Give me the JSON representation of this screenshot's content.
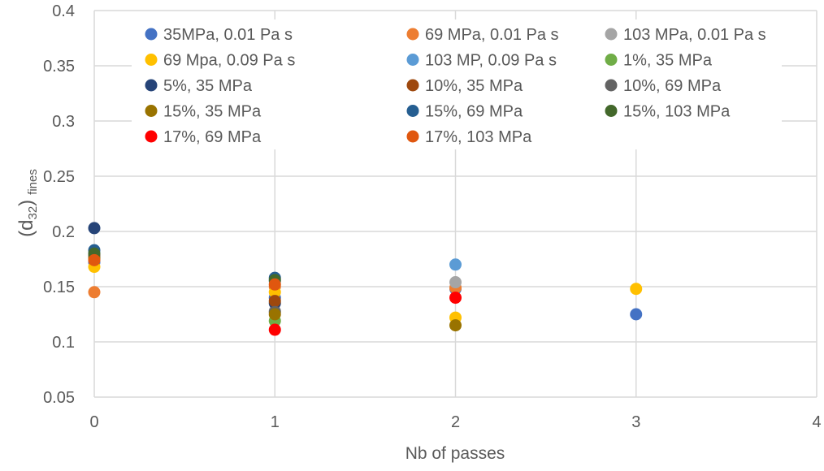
{
  "chart_data": {
    "type": "scatter",
    "xlabel": "Nb of passes",
    "ylabel_main": "(d",
    "ylabel_sub": "32",
    "ylabel_close": ")",
    "ylabel_suffix": "fines",
    "xlim": [
      0,
      4
    ],
    "ylim": [
      0.05,
      0.4
    ],
    "x_ticks": [
      "0",
      "1",
      "2",
      "3",
      "4"
    ],
    "y_ticks": [
      "0.05",
      "0.1",
      "0.15",
      "0.2",
      "0.25",
      "0.3",
      "0.35",
      "0.4"
    ],
    "grid": true,
    "legend_placement": "top",
    "series": [
      {
        "name": "35MPa, 0.01 Pa s",
        "color": "#4472C4",
        "points": [
          [
            0,
            0.172
          ],
          [
            1,
            0.14
          ],
          [
            2,
            0.148
          ],
          [
            3,
            0.125
          ]
        ]
      },
      {
        "name": "69 MPa, 0.01 Pa s",
        "color": "#ED7D31",
        "points": [
          [
            0,
            0.145
          ],
          [
            1,
            0.15
          ],
          [
            2,
            0.149
          ]
        ]
      },
      {
        "name": "103 MPa, 0.01 Pa s",
        "color": "#A5A5A5",
        "points": [
          [
            0,
            0.175
          ],
          [
            1,
            0.128
          ],
          [
            2,
            0.154
          ]
        ]
      },
      {
        "name": "69 Mpa, 0.09 Pa s",
        "color": "#FFC000",
        "points": [
          [
            0,
            0.168
          ],
          [
            1,
            0.145
          ],
          [
            2,
            0.122
          ],
          [
            3,
            0.148
          ]
        ]
      },
      {
        "name": "103 MP, 0.09 Pa s",
        "color": "#5B9BD5",
        "points": [
          [
            0,
            0.18
          ],
          [
            1,
            0.155
          ],
          [
            2,
            0.17
          ]
        ]
      },
      {
        "name": "1%, 35 MPa",
        "color": "#70AD47",
        "points": [
          [
            0,
            0.176
          ],
          [
            1,
            0.119
          ]
        ]
      },
      {
        "name": "5%, 35 MPa",
        "color": "#264478",
        "points": [
          [
            0,
            0.203
          ],
          [
            1,
            0.135
          ]
        ]
      },
      {
        "name": "10%, 35 MPa",
        "color": "#9E480E",
        "points": [
          [
            0,
            0.178
          ],
          [
            1,
            0.137
          ]
        ]
      },
      {
        "name": "10%, 69 MPa",
        "color": "#636363",
        "points": [
          [
            0,
            0.177
          ],
          [
            1,
            0.127
          ]
        ]
      },
      {
        "name": "15%, 35 MPa",
        "color": "#997300",
        "points": [
          [
            0,
            0.176
          ],
          [
            1,
            0.125
          ],
          [
            2,
            0.115
          ]
        ]
      },
      {
        "name": "15%, 69 MPa",
        "color": "#255E91",
        "points": [
          [
            0,
            0.183
          ],
          [
            1,
            0.158
          ]
        ]
      },
      {
        "name": "15%, 103 MPa",
        "color": "#43682B",
        "points": [
          [
            0,
            0.18
          ],
          [
            1,
            0.156
          ]
        ]
      },
      {
        "name": "17%, 69 MPa",
        "color": "#FF0000",
        "points": [
          [
            1,
            0.111
          ],
          [
            2,
            0.14
          ]
        ]
      },
      {
        "name": "17%, 103 MPa",
        "color": "#E0570F",
        "points": [
          [
            0,
            0.174
          ],
          [
            1,
            0.152
          ]
        ]
      }
    ]
  }
}
